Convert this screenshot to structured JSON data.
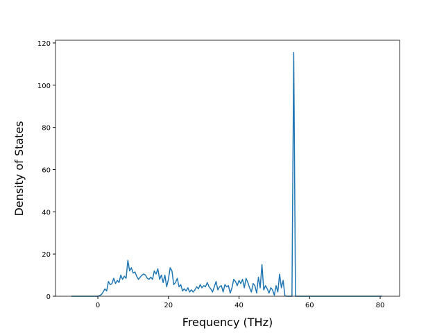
{
  "chart_data": {
    "type": "line",
    "x_label": "Frequency (THz)",
    "y_label": "Density of States",
    "x": [
      -7.5,
      0,
      0.5,
      1,
      1.5,
      2,
      2.5,
      3,
      3.5,
      4,
      4.5,
      5,
      5.5,
      6,
      6.5,
      7,
      7.5,
      8,
      8.5,
      9,
      9.5,
      10,
      10.5,
      11,
      11.5,
      12,
      12.5,
      13,
      13.5,
      14,
      14.5,
      15,
      15.5,
      16,
      16.5,
      17,
      17.5,
      18,
      18.5,
      19,
      19.5,
      20,
      20.5,
      21,
      21.5,
      22,
      22.5,
      23,
      23.5,
      24,
      24.5,
      25,
      25.5,
      26,
      26.5,
      27,
      27.5,
      28,
      28.5,
      29,
      29.5,
      30,
      30.5,
      31,
      31.5,
      32,
      32.5,
      33,
      33.5,
      34,
      34.5,
      35,
      35.5,
      36,
      36.5,
      37,
      37.5,
      38,
      38.5,
      39,
      39.5,
      40,
      40.5,
      41,
      41.5,
      42,
      42.5,
      43,
      43.5,
      44,
      44.5,
      45,
      45.5,
      46,
      46.5,
      47,
      47.5,
      48,
      48.5,
      49,
      49.5,
      50,
      50.5,
      51,
      51.5,
      52,
      52.5,
      53,
      53.5,
      55,
      55.5,
      56,
      80.5
    ],
    "values": [
      0,
      0,
      0.3,
      0.8,
      2,
      3.5,
      2.5,
      7,
      5.5,
      6,
      8.5,
      6,
      7.5,
      6.5,
      10,
      8,
      9.5,
      8.5,
      17,
      12,
      13.5,
      11,
      11.5,
      9.5,
      8,
      9,
      10,
      10.5,
      10,
      8.5,
      8,
      9,
      8,
      12,
      10.5,
      13,
      8,
      10,
      6.5,
      10,
      4.5,
      8,
      13.5,
      12,
      5.5,
      6.5,
      8.5,
      4.5,
      5.5,
      2.5,
      3.5,
      2.5,
      4,
      2,
      3,
      2,
      3,
      4.5,
      3.5,
      5.5,
      4,
      5,
      4.5,
      6.5,
      4.5,
      3.5,
      2,
      4.5,
      7,
      3,
      4.5,
      5,
      2,
      5.5,
      4.5,
      5,
      1.5,
      4,
      8,
      7,
      5,
      7.5,
      6,
      8,
      4,
      8.5,
      6.5,
      4,
      2,
      6,
      5,
      1.5,
      9,
      4,
      15,
      3,
      5,
      3.5,
      1.5,
      4,
      3,
      0.5,
      5,
      2,
      10.5,
      4,
      7.5,
      0.2,
      0,
      0,
      115.5,
      0,
      0
    ],
    "color": "#1f77b4",
    "xlim": [
      -12,
      85.5
    ],
    "xticks": [
      0,
      20,
      40,
      60,
      80
    ],
    "ylim": [
      0,
      121.3
    ],
    "yticks": [
      0,
      20,
      40,
      60,
      80,
      100,
      120
    ]
  }
}
